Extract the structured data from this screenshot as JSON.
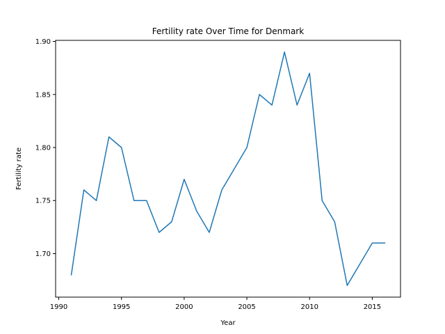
{
  "chart_data": {
    "type": "line",
    "title": "Fertility rate Over Time for Denmark",
    "xlabel": "Year",
    "ylabel": "Fertility rate",
    "xlim": [
      1989.75,
      2017.25
    ],
    "ylim": [
      1.659,
      1.901
    ],
    "xticks": [
      1990,
      1995,
      2000,
      2005,
      2010,
      2015
    ],
    "yticks": [
      1.7,
      1.75,
      1.8,
      1.85,
      1.9
    ],
    "xtick_labels": [
      "1990",
      "1995",
      "2000",
      "2005",
      "2010",
      "2015"
    ],
    "ytick_labels": [
      "1.70",
      "1.75",
      "1.80",
      "1.85",
      "1.90"
    ],
    "grid": false,
    "colors": {
      "line": "#1f77b4"
    },
    "series": [
      {
        "x": [
          1991,
          1992,
          1993,
          1994,
          1995,
          1996,
          1997,
          1998,
          1999,
          2000,
          2001,
          2002,
          2003,
          2004,
          2005,
          2006,
          2007,
          2008,
          2009,
          2010,
          2011,
          2012,
          2013,
          2014,
          2015,
          2016
        ],
        "values": [
          1.68,
          1.76,
          1.75,
          1.81,
          1.8,
          1.75,
          1.75,
          1.72,
          1.73,
          1.77,
          1.74,
          1.72,
          1.76,
          1.78,
          1.8,
          1.85,
          1.84,
          1.89,
          1.84,
          1.87,
          1.75,
          1.73,
          1.67,
          1.69,
          1.71,
          1.71
        ]
      }
    ]
  }
}
